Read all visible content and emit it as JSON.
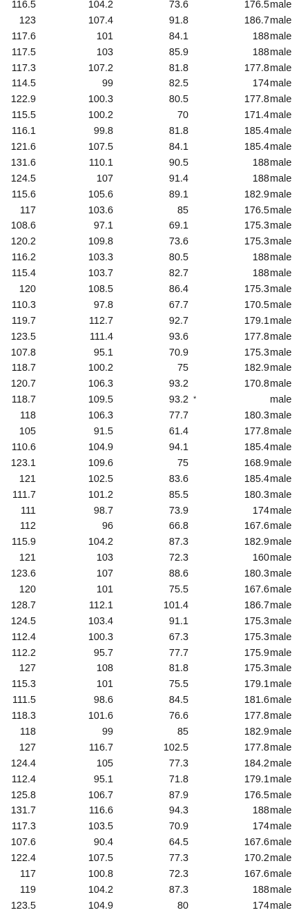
{
  "rows": [
    [
      "116.5",
      "104.2",
      "73.6",
      "",
      "176.5",
      "male"
    ],
    [
      "123",
      "107.4",
      "91.8",
      "",
      "186.7",
      "male"
    ],
    [
      "117.6",
      "101",
      "84.1",
      "",
      "188",
      "male"
    ],
    [
      "117.5",
      "103",
      "85.9",
      "",
      "188",
      "male"
    ],
    [
      "117.3",
      "107.2",
      "81.8",
      "",
      "177.8",
      "male"
    ],
    [
      "114.5",
      "99",
      "82.5",
      "",
      "174",
      "male"
    ],
    [
      "122.9",
      "100.3",
      "80.5",
      "",
      "177.8",
      "male"
    ],
    [
      "115.5",
      "100.2",
      "70",
      "",
      "171.4",
      "male"
    ],
    [
      "116.1",
      "99.8",
      "81.8",
      "",
      "185.4",
      "male"
    ],
    [
      "121.6",
      "107.5",
      "84.1",
      "",
      "185.4",
      "male"
    ],
    [
      "131.6",
      "110.1",
      "90.5",
      "",
      "188",
      "male"
    ],
    [
      "124.5",
      "107",
      "91.4",
      "",
      "188",
      "male"
    ],
    [
      "115.6",
      "105.6",
      "89.1",
      "",
      "182.9",
      "male"
    ],
    [
      "117",
      "103.6",
      "85",
      "",
      "176.5",
      "male"
    ],
    [
      "108.6",
      "97.1",
      "69.1",
      "",
      "175.3",
      "male"
    ],
    [
      "120.2",
      "109.8",
      "73.6",
      "",
      "175.3",
      "male"
    ],
    [
      "116.2",
      "103.3",
      "80.5",
      "",
      "188",
      "male"
    ],
    [
      "115.4",
      "103.7",
      "82.7",
      "",
      "188",
      "male"
    ],
    [
      "120",
      "108.5",
      "86.4",
      "",
      "175.3",
      "male"
    ],
    [
      "110.3",
      "97.8",
      "67.7",
      "",
      "170.5",
      "male"
    ],
    [
      "119.7",
      "112.7",
      "92.7",
      "",
      "179.1",
      "male"
    ],
    [
      "123.5",
      "111.4",
      "93.6",
      "",
      "177.8",
      "male"
    ],
    [
      "107.8",
      "95.1",
      "70.9",
      "",
      "175.3",
      "male"
    ],
    [
      "118.7",
      "100.2",
      "75",
      "",
      "182.9",
      "male"
    ],
    [
      "120.7",
      "106.3",
      "93.2",
      "",
      "170.8",
      "male"
    ],
    [
      "118.7",
      "109.5",
      "93.2",
      "*",
      "",
      "male"
    ],
    [
      "118",
      "106.3",
      "77.7",
      "",
      "180.3",
      "male"
    ],
    [
      "105",
      "91.5",
      "61.4",
      "",
      "177.8",
      "male"
    ],
    [
      "110.6",
      "104.9",
      "94.1",
      "",
      "185.4",
      "male"
    ],
    [
      "123.1",
      "109.6",
      "75",
      "",
      "168.9",
      "male"
    ],
    [
      "121",
      "102.5",
      "83.6",
      "",
      "185.4",
      "male"
    ],
    [
      "111.7",
      "101.2",
      "85.5",
      "",
      "180.3",
      "male"
    ],
    [
      "111",
      "98.7",
      "73.9",
      "",
      "174",
      "male"
    ],
    [
      "112",
      "96",
      "66.8",
      "",
      "167.6",
      "male"
    ],
    [
      "115.9",
      "104.2",
      "87.3",
      "",
      "182.9",
      "male"
    ],
    [
      "121",
      "103",
      "72.3",
      "",
      "160",
      "male"
    ],
    [
      "123.6",
      "107",
      "88.6",
      "",
      "180.3",
      "male"
    ],
    [
      "120",
      "101",
      "75.5",
      "",
      "167.6",
      "male"
    ],
    [
      "128.7",
      "112.1",
      "101.4",
      "",
      "186.7",
      "male"
    ],
    [
      "124.5",
      "103.4",
      "91.1",
      "",
      "175.3",
      "male"
    ],
    [
      "112.4",
      "100.3",
      "67.3",
      "",
      "175.3",
      "male"
    ],
    [
      "112.2",
      "95.7",
      "77.7",
      "",
      "175.9",
      "male"
    ],
    [
      "127",
      "108",
      "81.8",
      "",
      "175.3",
      "male"
    ],
    [
      "115.3",
      "101",
      "75.5",
      "",
      "179.1",
      "male"
    ],
    [
      "111.5",
      "98.6",
      "84.5",
      "",
      "181.6",
      "male"
    ],
    [
      "118.3",
      "101.6",
      "76.6",
      "",
      "177.8",
      "male"
    ],
    [
      "118",
      "99",
      "85",
      "",
      "182.9",
      "male"
    ],
    [
      "127",
      "116.7",
      "102.5",
      "",
      "177.8",
      "male"
    ],
    [
      "124.4",
      "105",
      "77.3",
      "",
      "184.2",
      "male"
    ],
    [
      "112.4",
      "95.1",
      "71.8",
      "",
      "179.1",
      "male"
    ],
    [
      "125.8",
      "106.7",
      "87.9",
      "",
      "176.5",
      "male"
    ],
    [
      "131.7",
      "116.6",
      "94.3",
      "",
      "188",
      "male"
    ],
    [
      "117.3",
      "103.5",
      "70.9",
      "",
      "174",
      "male"
    ],
    [
      "107.6",
      "90.4",
      "64.5",
      "",
      "167.6",
      "male"
    ],
    [
      "122.4",
      "107.5",
      "77.3",
      "",
      "170.2",
      "male"
    ],
    [
      "117",
      "100.8",
      "72.3",
      "",
      "167.6",
      "male"
    ],
    [
      "119",
      "104.2",
      "87.3",
      "",
      "188",
      "male"
    ],
    [
      "123.5",
      "104.9",
      "80",
      "",
      "174",
      "male"
    ]
  ]
}
